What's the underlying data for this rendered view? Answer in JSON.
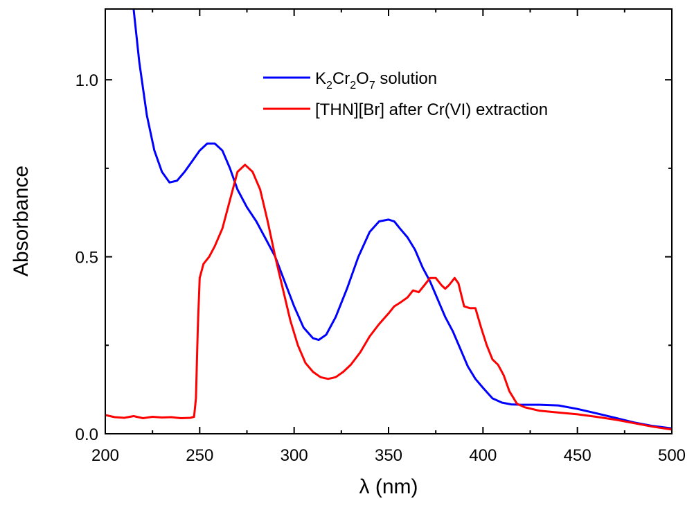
{
  "chart_data": {
    "type": "line",
    "xlabel": "λ (nm)",
    "ylabel": "Absorbance",
    "xlim": [
      200,
      500
    ],
    "ylim": [
      0,
      1.2
    ],
    "x_ticks": [
      "200",
      "250",
      "300",
      "350",
      "400",
      "450",
      "500"
    ],
    "y_ticks": [
      "0.0",
      "0.5",
      "1.0"
    ],
    "grid": false,
    "legend_position": "top-right",
    "series": [
      {
        "name": "K2Cr2O7 solution",
        "legend_parts": {
          "k": "K",
          "s1": "2",
          "cr": "Cr",
          "s2": "2",
          "o": "O",
          "s3": "7",
          "rest": " solution"
        },
        "color": "#0000ff",
        "points": [
          [
            215,
            1.2
          ],
          [
            218,
            1.05
          ],
          [
            222,
            0.9
          ],
          [
            226,
            0.8
          ],
          [
            230,
            0.74
          ],
          [
            234,
            0.71
          ],
          [
            238,
            0.715
          ],
          [
            242,
            0.74
          ],
          [
            246,
            0.77
          ],
          [
            250,
            0.8
          ],
          [
            254,
            0.82
          ],
          [
            258,
            0.82
          ],
          [
            262,
            0.8
          ],
          [
            266,
            0.75
          ],
          [
            270,
            0.69
          ],
          [
            275,
            0.64
          ],
          [
            280,
            0.6
          ],
          [
            285,
            0.55
          ],
          [
            290,
            0.5
          ],
          [
            295,
            0.43
          ],
          [
            300,
            0.36
          ],
          [
            305,
            0.3
          ],
          [
            310,
            0.27
          ],
          [
            313,
            0.265
          ],
          [
            317,
            0.28
          ],
          [
            322,
            0.33
          ],
          [
            328,
            0.41
          ],
          [
            334,
            0.5
          ],
          [
            340,
            0.57
          ],
          [
            345,
            0.6
          ],
          [
            350,
            0.605
          ],
          [
            353,
            0.6
          ],
          [
            356,
            0.58
          ],
          [
            360,
            0.555
          ],
          [
            364,
            0.52
          ],
          [
            368,
            0.47
          ],
          [
            372,
            0.43
          ],
          [
            376,
            0.38
          ],
          [
            380,
            0.33
          ],
          [
            384,
            0.29
          ],
          [
            388,
            0.24
          ],
          [
            392,
            0.19
          ],
          [
            396,
            0.155
          ],
          [
            400,
            0.13
          ],
          [
            405,
            0.1
          ],
          [
            410,
            0.088
          ],
          [
            415,
            0.083
          ],
          [
            420,
            0.082
          ],
          [
            430,
            0.082
          ],
          [
            440,
            0.08
          ],
          [
            450,
            0.07
          ],
          [
            460,
            0.058
          ],
          [
            470,
            0.045
          ],
          [
            480,
            0.032
          ],
          [
            490,
            0.022
          ],
          [
            500,
            0.015
          ]
        ]
      },
      {
        "name": "[THN][Br] after Cr(VI) extraction",
        "color": "#ff0000",
        "points": [
          [
            200,
            0.053
          ],
          [
            205,
            0.047
          ],
          [
            210,
            0.045
          ],
          [
            215,
            0.05
          ],
          [
            220,
            0.044
          ],
          [
            225,
            0.048
          ],
          [
            230,
            0.046
          ],
          [
            235,
            0.047
          ],
          [
            240,
            0.044
          ],
          [
            245,
            0.045
          ],
          [
            247,
            0.048
          ],
          [
            248,
            0.1
          ],
          [
            249,
            0.3
          ],
          [
            250,
            0.44
          ],
          [
            252,
            0.48
          ],
          [
            255,
            0.5
          ],
          [
            258,
            0.53
          ],
          [
            262,
            0.58
          ],
          [
            266,
            0.66
          ],
          [
            270,
            0.74
          ],
          [
            274,
            0.76
          ],
          [
            278,
            0.74
          ],
          [
            282,
            0.69
          ],
          [
            286,
            0.6
          ],
          [
            290,
            0.5
          ],
          [
            294,
            0.41
          ],
          [
            298,
            0.32
          ],
          [
            302,
            0.25
          ],
          [
            306,
            0.2
          ],
          [
            310,
            0.175
          ],
          [
            314,
            0.16
          ],
          [
            318,
            0.155
          ],
          [
            322,
            0.16
          ],
          [
            326,
            0.175
          ],
          [
            330,
            0.195
          ],
          [
            335,
            0.23
          ],
          [
            340,
            0.275
          ],
          [
            345,
            0.31
          ],
          [
            350,
            0.34
          ],
          [
            353,
            0.36
          ],
          [
            356,
            0.37
          ],
          [
            360,
            0.385
          ],
          [
            363,
            0.405
          ],
          [
            366,
            0.4
          ],
          [
            369,
            0.42
          ],
          [
            372,
            0.44
          ],
          [
            375,
            0.44
          ],
          [
            378,
            0.42
          ],
          [
            380,
            0.41
          ],
          [
            382,
            0.42
          ],
          [
            385,
            0.44
          ],
          [
            387,
            0.425
          ],
          [
            390,
            0.36
          ],
          [
            393,
            0.355
          ],
          [
            396,
            0.355
          ],
          [
            399,
            0.3
          ],
          [
            402,
            0.25
          ],
          [
            405,
            0.21
          ],
          [
            408,
            0.195
          ],
          [
            411,
            0.165
          ],
          [
            414,
            0.12
          ],
          [
            418,
            0.085
          ],
          [
            422,
            0.075
          ],
          [
            430,
            0.065
          ],
          [
            440,
            0.06
          ],
          [
            450,
            0.055
          ],
          [
            460,
            0.048
          ],
          [
            470,
            0.04
          ],
          [
            480,
            0.03
          ],
          [
            490,
            0.02
          ],
          [
            500,
            0.012
          ]
        ]
      }
    ]
  }
}
